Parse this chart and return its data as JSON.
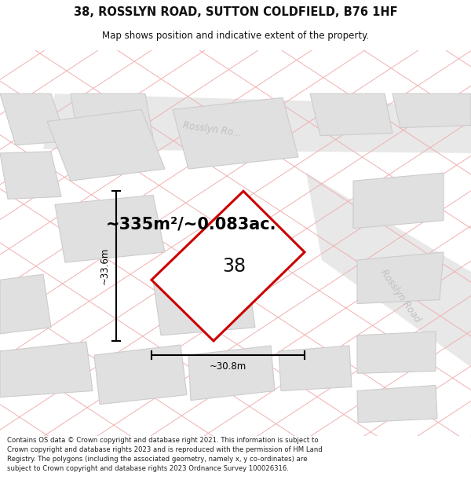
{
  "title_line1": "38, ROSSLYN ROAD, SUTTON COLDFIELD, B76 1HF",
  "title_line2": "Map shows position and indicative extent of the property.",
  "area_text": "~335m²/~0.083ac.",
  "width_label": "~30.8m",
  "height_label": "~33.6m",
  "plot_number": "38",
  "footer_text": "Contains OS data © Crown copyright and database right 2021. This information is subject to Crown copyright and database rights 2023 and is reproduced with the permission of HM Land Registry. The polygons (including the associated geometry, namely x, y co-ordinates) are subject to Crown copyright and database rights 2023 Ordnance Survey 100026316.",
  "map_bg": "#f5f5f5",
  "pink_line_color1": "#f0b0b0",
  "pink_line_color2": "#f0b0b0",
  "building_fill": "#e0e0e0",
  "building_edge": "#cccccc",
  "road_fill": "#e8e8e8",
  "property_edge": "#cc0000",
  "property_fill": "#ffffff",
  "road_label_color": "#c0c0c0",
  "text_color": "#111111",
  "dim_color": "#000000"
}
